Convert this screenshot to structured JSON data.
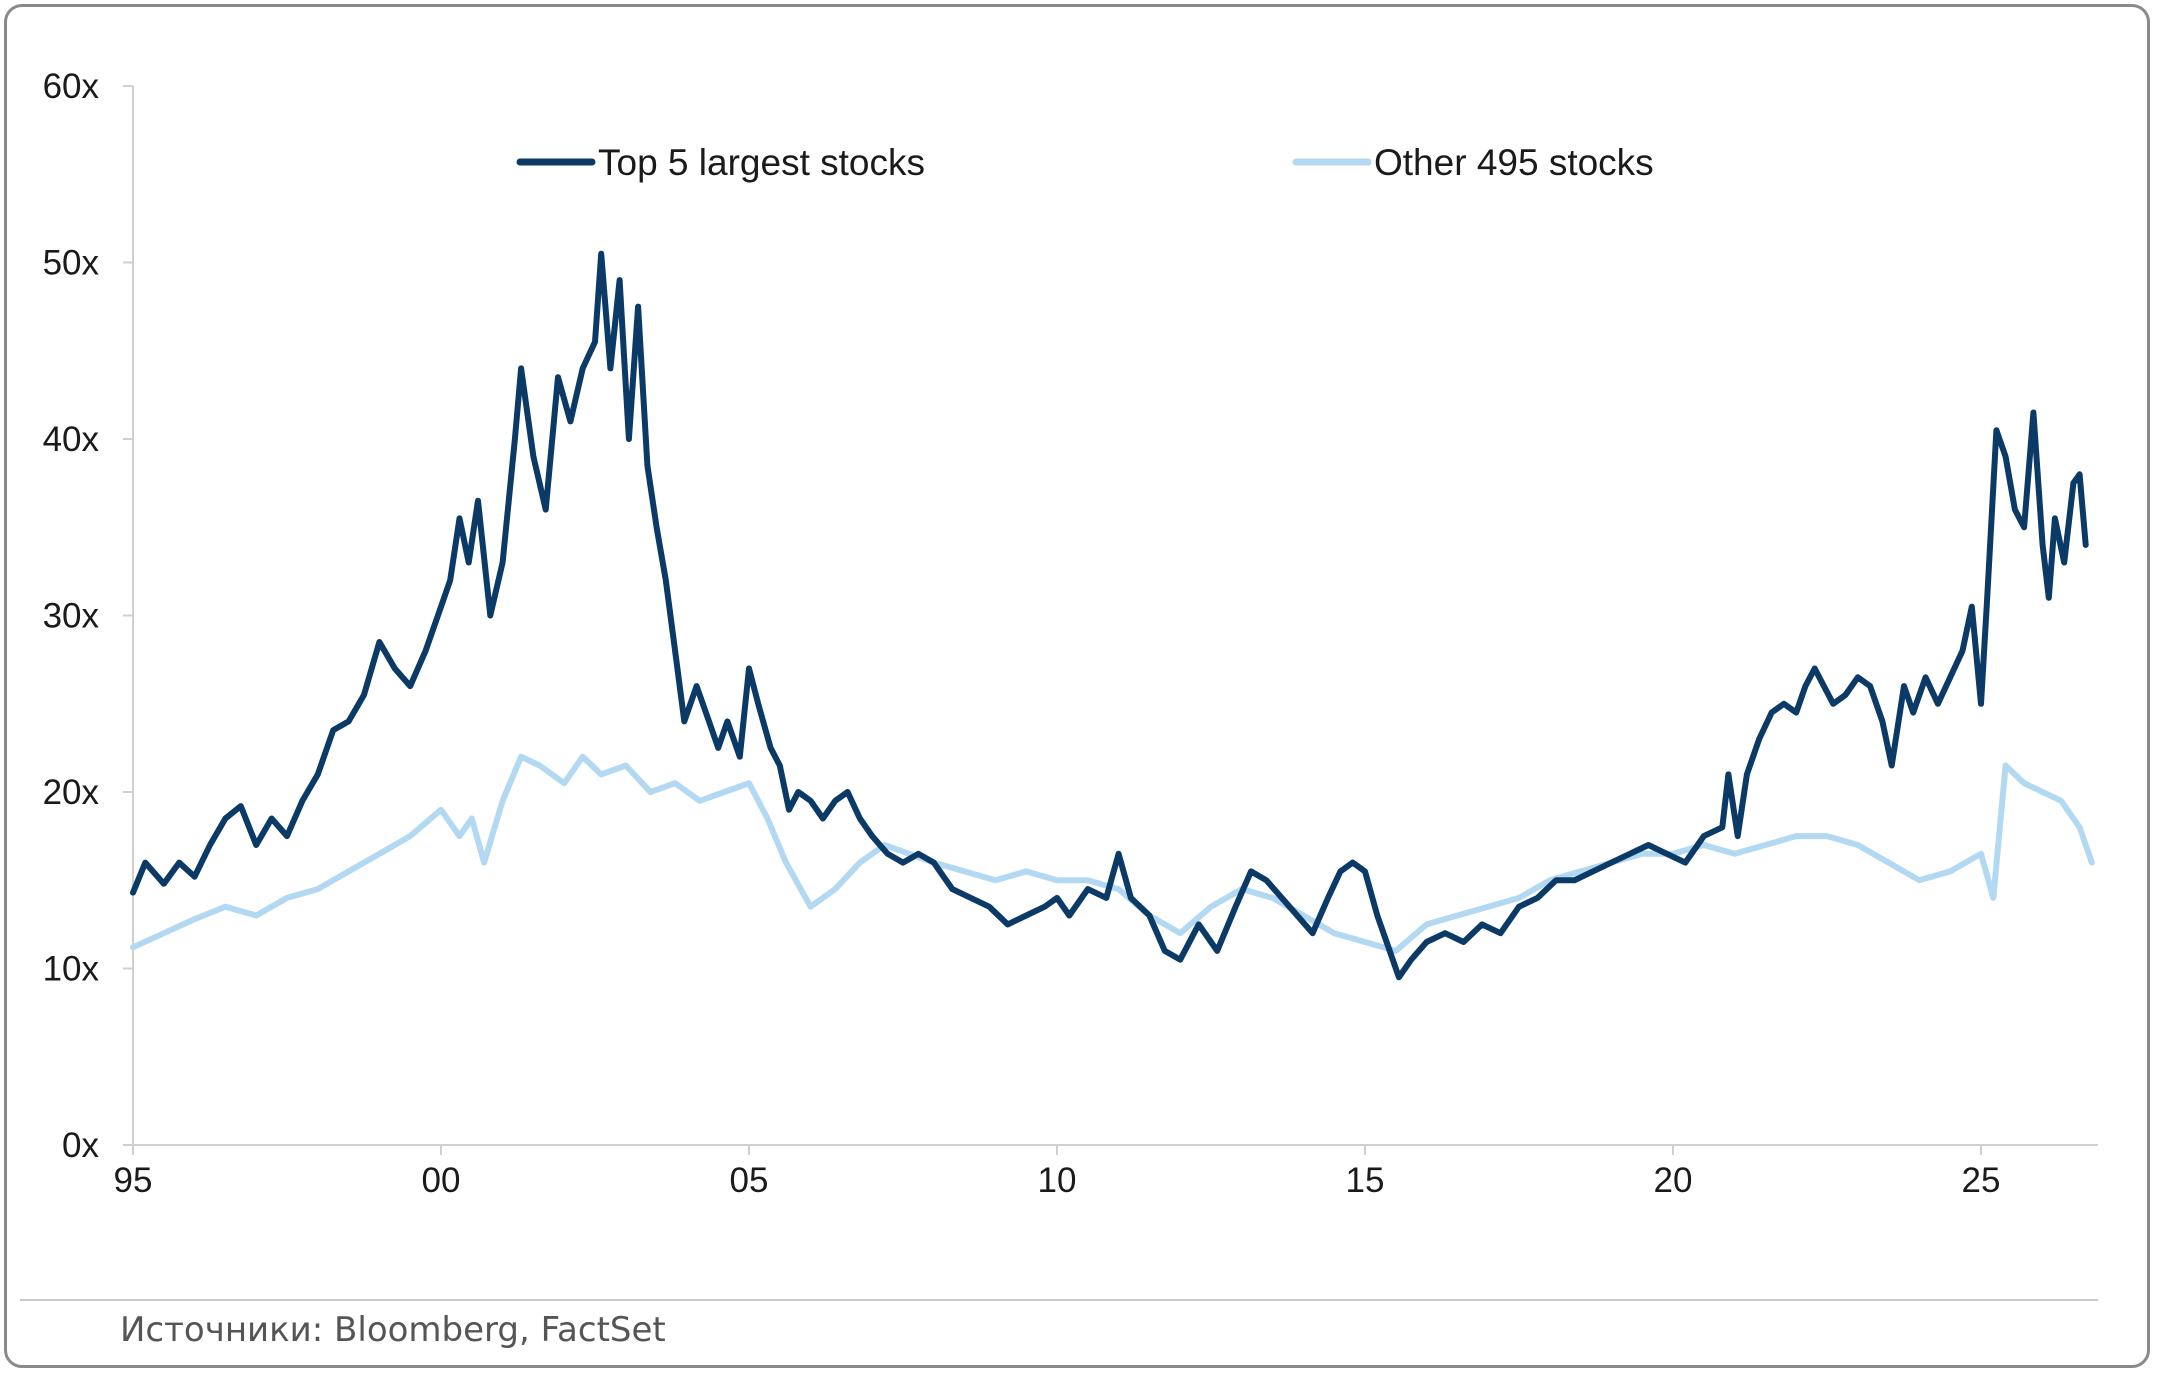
{
  "chart_data": {
    "type": "line",
    "x_ticks": [
      {
        "value": 1995,
        "label": "95"
      },
      {
        "value": 2000,
        "label": "00"
      },
      {
        "value": 2005,
        "label": "05"
      },
      {
        "value": 2010,
        "label": "10"
      },
      {
        "value": 2015,
        "label": "15"
      },
      {
        "value": 2020,
        "label": "20"
      },
      {
        "value": 2025,
        "label": "25"
      }
    ],
    "y_ticks": [
      {
        "value": 0,
        "label": "0x"
      },
      {
        "value": 10,
        "label": "10x"
      },
      {
        "value": 20,
        "label": "20x"
      },
      {
        "value": 30,
        "label": "30x"
      },
      {
        "value": 40,
        "label": "40x"
      },
      {
        "value": 50,
        "label": "50x"
      },
      {
        "value": 60,
        "label": "60x"
      }
    ],
    "xlim": [
      1995,
      2026.9
    ],
    "ylim": [
      0,
      60
    ],
    "grid": false,
    "legend_position": "top",
    "series": [
      {
        "name": "Top 5 largest stocks",
        "color": "#0b3a66",
        "points": [
          [
            1995.0,
            14.3
          ],
          [
            1995.2,
            16.0
          ],
          [
            1995.5,
            14.8
          ],
          [
            1995.75,
            16.0
          ],
          [
            1996.0,
            15.2
          ],
          [
            1996.25,
            17.0
          ],
          [
            1996.5,
            18.5
          ],
          [
            1996.75,
            19.2
          ],
          [
            1997.0,
            17.0
          ],
          [
            1997.25,
            18.5
          ],
          [
            1997.5,
            17.5
          ],
          [
            1997.75,
            19.5
          ],
          [
            1998.0,
            21.0
          ],
          [
            1998.25,
            23.5
          ],
          [
            1998.5,
            24.0
          ],
          [
            1998.75,
            25.5
          ],
          [
            1999.0,
            28.5
          ],
          [
            1999.25,
            27.0
          ],
          [
            1999.5,
            26.0
          ],
          [
            1999.75,
            28.0
          ],
          [
            2000.0,
            30.5
          ],
          [
            2000.15,
            32.0
          ],
          [
            2000.3,
            35.5
          ],
          [
            2000.45,
            33.0
          ],
          [
            2000.6,
            36.5
          ],
          [
            2000.8,
            30.0
          ],
          [
            2001.0,
            33.0
          ],
          [
            2001.2,
            40.0
          ],
          [
            2001.3,
            44.0
          ],
          [
            2001.5,
            39.0
          ],
          [
            2001.7,
            36.0
          ],
          [
            2001.9,
            43.5
          ],
          [
            2002.1,
            41.0
          ],
          [
            2002.3,
            44.0
          ],
          [
            2002.5,
            45.5
          ],
          [
            2002.6,
            50.5
          ],
          [
            2002.75,
            44.0
          ],
          [
            2002.9,
            49.0
          ],
          [
            2003.05,
            40.0
          ],
          [
            2003.2,
            47.5
          ],
          [
            2003.35,
            38.5
          ],
          [
            2003.5,
            35.0
          ],
          [
            2003.65,
            32.0
          ],
          [
            2003.8,
            28.0
          ],
          [
            2003.95,
            24.0
          ],
          [
            2004.15,
            26.0
          ],
          [
            2004.35,
            24.0
          ],
          [
            2004.5,
            22.5
          ],
          [
            2004.65,
            24.0
          ],
          [
            2004.85,
            22.0
          ],
          [
            2005.0,
            27.0
          ],
          [
            2005.15,
            25.0
          ],
          [
            2005.35,
            22.5
          ],
          [
            2005.5,
            21.5
          ],
          [
            2005.65,
            19.0
          ],
          [
            2005.8,
            20.0
          ],
          [
            2006.0,
            19.5
          ],
          [
            2006.2,
            18.5
          ],
          [
            2006.4,
            19.5
          ],
          [
            2006.6,
            20.0
          ],
          [
            2006.8,
            18.5
          ],
          [
            2007.0,
            17.5
          ],
          [
            2007.25,
            16.5
          ],
          [
            2007.5,
            16.0
          ],
          [
            2007.75,
            16.5
          ],
          [
            2008.0,
            16.0
          ],
          [
            2008.3,
            14.5
          ],
          [
            2008.6,
            14.0
          ],
          [
            2008.9,
            13.5
          ],
          [
            2009.2,
            12.5
          ],
          [
            2009.5,
            13.0
          ],
          [
            2009.8,
            13.5
          ],
          [
            2010.0,
            14.0
          ],
          [
            2010.2,
            13.0
          ],
          [
            2010.5,
            14.5
          ],
          [
            2010.8,
            14.0
          ],
          [
            2011.0,
            16.5
          ],
          [
            2011.2,
            14.0
          ],
          [
            2011.5,
            13.0
          ],
          [
            2011.75,
            11.0
          ],
          [
            2012.0,
            10.5
          ],
          [
            2012.3,
            12.5
          ],
          [
            2012.6,
            11.0
          ],
          [
            2012.9,
            13.5
          ],
          [
            2013.15,
            15.5
          ],
          [
            2013.4,
            15.0
          ],
          [
            2013.65,
            14.0
          ],
          [
            2013.9,
            13.0
          ],
          [
            2014.15,
            12.0
          ],
          [
            2014.4,
            14.0
          ],
          [
            2014.6,
            15.5
          ],
          [
            2014.8,
            16.0
          ],
          [
            2015.0,
            15.5
          ],
          [
            2015.2,
            13.0
          ],
          [
            2015.35,
            11.5
          ],
          [
            2015.55,
            9.5
          ],
          [
            2015.75,
            10.5
          ],
          [
            2016.0,
            11.5
          ],
          [
            2016.3,
            12.0
          ],
          [
            2016.6,
            11.5
          ],
          [
            2016.9,
            12.5
          ],
          [
            2017.2,
            12.0
          ],
          [
            2017.5,
            13.5
          ],
          [
            2017.8,
            14.0
          ],
          [
            2018.1,
            15.0
          ],
          [
            2018.4,
            15.0
          ],
          [
            2018.7,
            15.5
          ],
          [
            2019.0,
            16.0
          ],
          [
            2019.3,
            16.5
          ],
          [
            2019.6,
            17.0
          ],
          [
            2019.9,
            16.5
          ],
          [
            2020.2,
            16.0
          ],
          [
            2020.5,
            17.5
          ],
          [
            2020.8,
            18.0
          ],
          [
            2020.9,
            21.0
          ],
          [
            2021.05,
            17.5
          ],
          [
            2021.2,
            21.0
          ],
          [
            2021.4,
            23.0
          ],
          [
            2021.6,
            24.5
          ],
          [
            2021.8,
            25.0
          ],
          [
            2022.0,
            24.5
          ],
          [
            2022.15,
            26.0
          ],
          [
            2022.3,
            27.0
          ],
          [
            2022.45,
            26.0
          ],
          [
            2022.6,
            25.0
          ],
          [
            2022.8,
            25.5
          ],
          [
            2023.0,
            26.5
          ],
          [
            2023.2,
            26.0
          ],
          [
            2023.4,
            24.0
          ],
          [
            2023.55,
            21.5
          ],
          [
            2023.75,
            26.0
          ],
          [
            2023.9,
            24.5
          ],
          [
            2024.1,
            26.5
          ],
          [
            2024.3,
            25.0
          ],
          [
            2024.5,
            26.5
          ],
          [
            2024.7,
            28.0
          ],
          [
            2024.85,
            30.5
          ],
          [
            2025.0,
            25.0
          ],
          [
            2025.1,
            31.0
          ],
          [
            2025.25,
            40.5
          ],
          [
            2025.4,
            39.0
          ],
          [
            2025.55,
            36.0
          ],
          [
            2025.7,
            35.0
          ],
          [
            2025.85,
            41.5
          ],
          [
            2026.0,
            34.0
          ],
          [
            2026.1,
            31.0
          ],
          [
            2026.2,
            35.5
          ],
          [
            2026.35,
            33.0
          ],
          [
            2026.5,
            37.5
          ],
          [
            2026.6,
            38.0
          ],
          [
            2026.7,
            34.0
          ]
        ]
      },
      {
        "name": "Other 495 stocks",
        "color": "#b3d9f2",
        "points": [
          [
            1995.0,
            11.2
          ],
          [
            1995.5,
            12.0
          ],
          [
            1996.0,
            12.8
          ],
          [
            1996.5,
            13.5
          ],
          [
            1997.0,
            13.0
          ],
          [
            1997.5,
            14.0
          ],
          [
            1998.0,
            14.5
          ],
          [
            1998.5,
            15.5
          ],
          [
            1999.0,
            16.5
          ],
          [
            1999.5,
            17.5
          ],
          [
            2000.0,
            19.0
          ],
          [
            2000.3,
            17.5
          ],
          [
            2000.5,
            18.5
          ],
          [
            2000.7,
            16.0
          ],
          [
            2001.0,
            19.5
          ],
          [
            2001.3,
            22.0
          ],
          [
            2001.6,
            21.5
          ],
          [
            2002.0,
            20.5
          ],
          [
            2002.3,
            22.0
          ],
          [
            2002.6,
            21.0
          ],
          [
            2003.0,
            21.5
          ],
          [
            2003.4,
            20.0
          ],
          [
            2003.8,
            20.5
          ],
          [
            2004.2,
            19.5
          ],
          [
            2004.6,
            20.0
          ],
          [
            2005.0,
            20.5
          ],
          [
            2005.3,
            18.5
          ],
          [
            2005.6,
            16.0
          ],
          [
            2006.0,
            13.5
          ],
          [
            2006.4,
            14.5
          ],
          [
            2006.8,
            16.0
          ],
          [
            2007.2,
            17.0
          ],
          [
            2007.6,
            16.5
          ],
          [
            2008.0,
            16.0
          ],
          [
            2008.5,
            15.5
          ],
          [
            2009.0,
            15.0
          ],
          [
            2009.5,
            15.5
          ],
          [
            2010.0,
            15.0
          ],
          [
            2010.5,
            15.0
          ],
          [
            2011.0,
            14.5
          ],
          [
            2011.5,
            13.0
          ],
          [
            2012.0,
            12.0
          ],
          [
            2012.5,
            13.5
          ],
          [
            2013.0,
            14.5
          ],
          [
            2013.5,
            14.0
          ],
          [
            2014.0,
            13.0
          ],
          [
            2014.5,
            12.0
          ],
          [
            2015.0,
            11.5
          ],
          [
            2015.5,
            11.0
          ],
          [
            2016.0,
            12.5
          ],
          [
            2016.5,
            13.0
          ],
          [
            2017.0,
            13.5
          ],
          [
            2017.5,
            14.0
          ],
          [
            2018.0,
            15.0
          ],
          [
            2018.5,
            15.5
          ],
          [
            2019.0,
            16.0
          ],
          [
            2019.5,
            16.5
          ],
          [
            2020.0,
            16.5
          ],
          [
            2020.5,
            17.0
          ],
          [
            2021.0,
            16.5
          ],
          [
            2021.5,
            17.0
          ],
          [
            2022.0,
            17.5
          ],
          [
            2022.5,
            17.5
          ],
          [
            2023.0,
            17.0
          ],
          [
            2023.5,
            16.0
          ],
          [
            2024.0,
            15.0
          ],
          [
            2024.5,
            15.5
          ],
          [
            2025.0,
            16.5
          ],
          [
            2025.2,
            14.0
          ],
          [
            2025.4,
            21.5
          ],
          [
            2025.7,
            20.5
          ],
          [
            2026.0,
            20.0
          ],
          [
            2026.3,
            19.5
          ],
          [
            2026.6,
            18.0
          ],
          [
            2026.8,
            16.0
          ]
        ]
      }
    ]
  },
  "source_text": "Источники: Bloomberg, FactSet"
}
